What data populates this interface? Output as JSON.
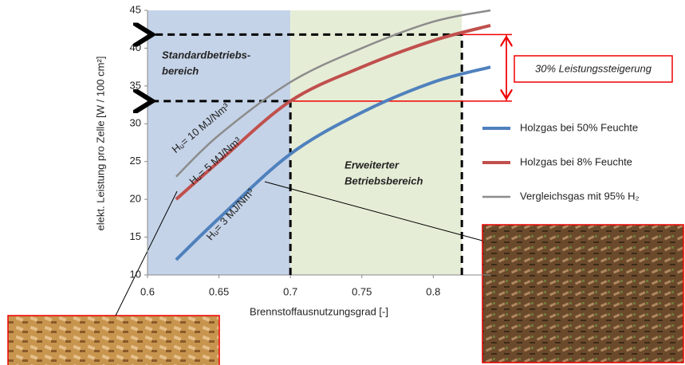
{
  "chart_data": {
    "type": "line",
    "x_label": "Brennstoffausnutzungsgrad [-]",
    "y_label": "elekt. Leistung pro Zelle [W / 100 cm²]",
    "xlim": [
      0.6,
      0.84
    ],
    "xticks": [
      0.6,
      0.65,
      0.7,
      0.75,
      0.8
    ],
    "ylim": [
      10,
      45
    ],
    "yticks": [
      10,
      15,
      20,
      25,
      30,
      35,
      40,
      45
    ],
    "x": [
      0.62,
      0.65,
      0.7,
      0.75,
      0.8,
      0.84
    ],
    "series": [
      {
        "name": "Holzgas bei 50% Feuchte",
        "color": "#4f81bd",
        "values": [
          12,
          17.5,
          26,
          31.5,
          35.5,
          37.5
        ],
        "curve_label": "Hᵤ= 3 MJ/Nm³"
      },
      {
        "name": "Holzgas bei 8% Feuchte",
        "color": "#c0504d",
        "values": [
          20,
          25,
          33,
          37.5,
          41,
          43
        ],
        "curve_label": "Hᵤ= 5 MJ/Nm³"
      },
      {
        "name": "Vergleichsgas mit 95% H₂",
        "color": "#8c8c8c",
        "values": [
          23,
          28.5,
          35.5,
          40,
          43.5,
          45
        ],
        "curve_label": "Hᵤ= 10 MJ/Nm³"
      }
    ],
    "regions": [
      {
        "label": [
          "Standardbetriebs-",
          "bereich"
        ],
        "from": 0.6,
        "to": 0.7,
        "color": "#c5d3e8",
        "text_color": "#4f81bd"
      },
      {
        "label": [
          "Erweiterter",
          "Betriebsbereich"
        ],
        "from": 0.7,
        "to": 0.82,
        "color": "#e6edd6",
        "text_color": "#9bbb59"
      }
    ],
    "reference_x": [
      0.7,
      0.82
    ],
    "reference_y": [
      33,
      41.8
    ],
    "annotation": "30% Leistungssteigerung"
  }
}
